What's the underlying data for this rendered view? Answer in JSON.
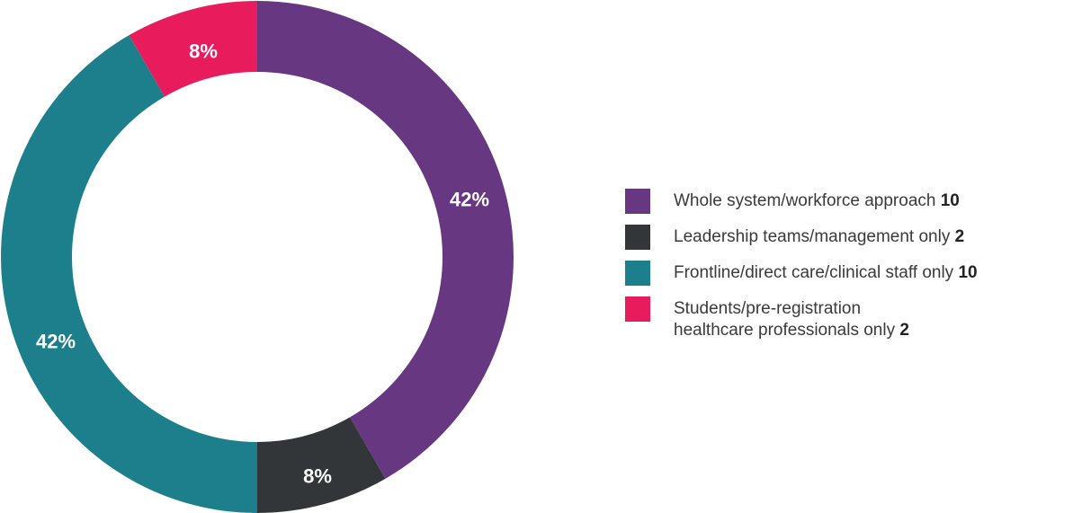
{
  "chart_data": {
    "type": "pie",
    "subtype": "donut",
    "categories": [
      "Whole system/workforce approach",
      "Leadership teams/management only",
      "Frontline/direct care/clinical staff only",
      "Students/pre-registration healthcare professionals only"
    ],
    "values": [
      10,
      2,
      10,
      2
    ],
    "percent_labels": [
      "42%",
      "8%",
      "42%",
      "8%"
    ],
    "colors": [
      "#673782",
      "#333638",
      "#1c7f8b",
      "#e81c5c"
    ],
    "legend": {
      "placement": "right",
      "items": [
        {
          "label": "Whole system/workforce approach",
          "count": "10",
          "color": "#673782"
        },
        {
          "label": "Leadership teams/management only",
          "count": "2",
          "color": "#333638"
        },
        {
          "label": "Frontline/direct care/clinical staff only",
          "count": "10",
          "color": "#1c7f8b"
        },
        {
          "label": "Students/pre-registration healthcare professionals only",
          "count": "2",
          "color": "#e81c5c"
        }
      ]
    }
  }
}
